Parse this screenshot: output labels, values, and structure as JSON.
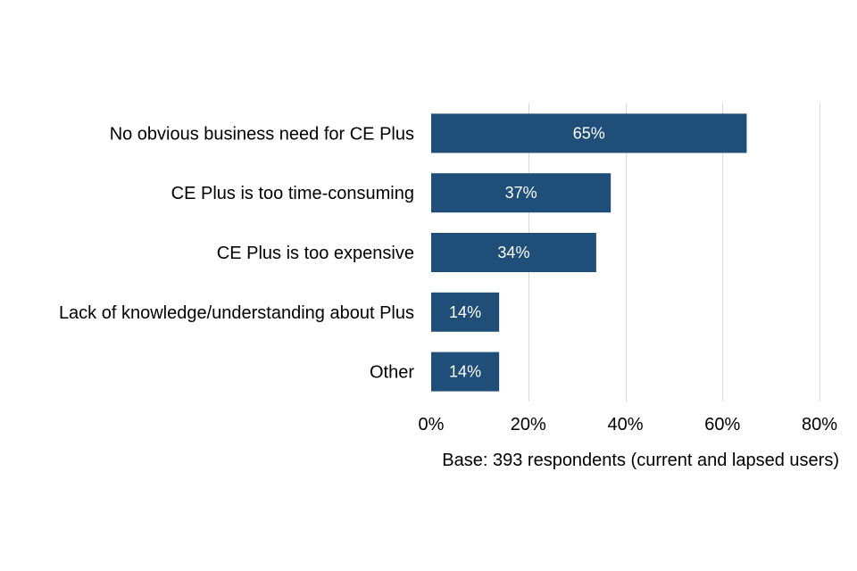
{
  "chart_data": {
    "type": "bar",
    "orientation": "horizontal",
    "categories": [
      "No obvious business need for CE Plus",
      "CE Plus is too time-consuming",
      "CE Plus is too expensive",
      "Lack of knowledge/understanding about Plus",
      "Other"
    ],
    "values": [
      65,
      37,
      34,
      14,
      14
    ],
    "data_labels": [
      "65%",
      "37%",
      "34%",
      "14%",
      "14%"
    ],
    "xlim": [
      0,
      80
    ],
    "x_ticks": [
      0,
      20,
      40,
      60,
      80
    ],
    "x_tick_labels": [
      "0%",
      "20%",
      "40%",
      "60%",
      "80%"
    ],
    "grid": true,
    "bar_color": "#1f4e79",
    "note": "Base: 393 respondents (current and lapsed users)"
  }
}
